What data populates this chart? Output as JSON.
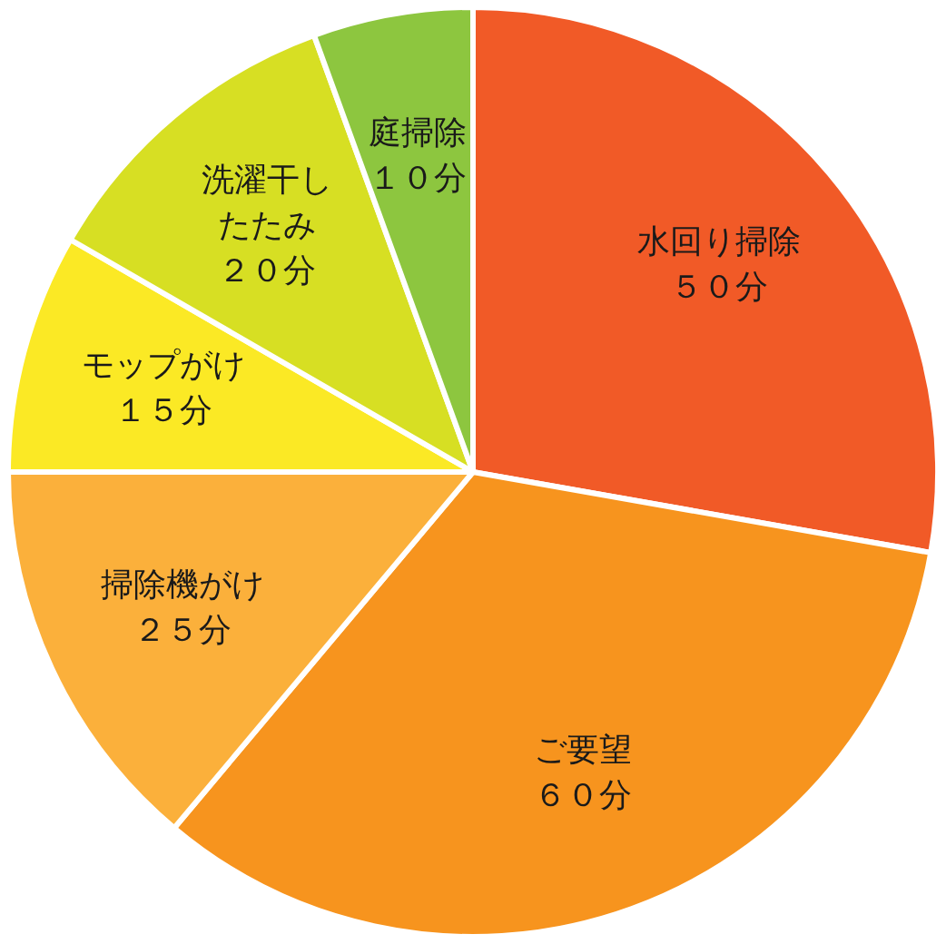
{
  "chart_data": {
    "type": "pie",
    "categories": [
      "水回り掃除",
      "ご要望",
      "掃除機がけ",
      "モップがけ",
      "洗濯干したたみ",
      "庭掃除"
    ],
    "values": [
      50,
      60,
      25,
      15,
      20,
      10
    ],
    "colors": [
      "#f15a27",
      "#f7941e",
      "#fbb03b",
      "#fbe925",
      "#d7df23",
      "#8dc63f"
    ],
    "value_labels": [
      "５０分",
      "６０分",
      "２５分",
      "１５分",
      "２０分",
      "１０分"
    ]
  }
}
